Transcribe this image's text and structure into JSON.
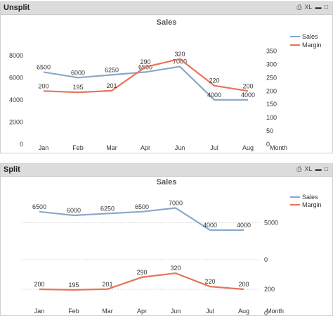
{
  "panels": [
    {
      "title": "Unsplit",
      "icons": [
        "print-icon",
        "xl-label",
        "minimize-icon",
        "maximize-icon"
      ],
      "xl_label": "XL"
    },
    {
      "title": "Split",
      "icons": [
        "print-icon",
        "xl-label",
        "minimize-icon",
        "maximize-icon"
      ],
      "xl_label": "XL"
    }
  ],
  "colors": {
    "sales": "#8aa9c9",
    "margin": "#e8735a"
  },
  "chart_data": [
    {
      "type": "line",
      "title": "Sales",
      "categories": [
        "Jan",
        "Feb",
        "Mar",
        "Apr",
        "Jun",
        "Jul",
        "Aug"
      ],
      "xlabel": "Month",
      "series": [
        {
          "name": "Sales",
          "axis": "left",
          "values": [
            6500,
            6000,
            6250,
            6500,
            7000,
            4000,
            4000
          ]
        },
        {
          "name": "Margin",
          "axis": "right",
          "values": [
            200,
            195,
            201,
            290,
            320,
            220,
            200
          ]
        }
      ],
      "y_left": {
        "ticks": [
          0,
          2000,
          4000,
          6000,
          8000
        ],
        "lim": [
          0,
          9000
        ]
      },
      "y_right": {
        "ticks": [
          0,
          50,
          100,
          150,
          200,
          250,
          300,
          350
        ],
        "lim": [
          0,
          375
        ]
      },
      "legend": "top-right",
      "value_labels": [
        [
          "6500",
          "6000",
          "6250",
          "6500",
          "7000",
          "4000",
          "4000"
        ],
        [
          "200",
          "195",
          "201",
          "290",
          "320",
          "220",
          "200"
        ]
      ]
    },
    {
      "type": "line",
      "title": "Sales",
      "categories": [
        "Jan",
        "Feb",
        "Mar",
        "Apr",
        "Jun",
        "Jul",
        "Aug"
      ],
      "xlabel": "Month",
      "split": true,
      "series": [
        {
          "name": "Sales",
          "values": [
            6500,
            6000,
            6250,
            6500,
            7000,
            4000,
            4000
          ]
        },
        {
          "name": "Margin",
          "values": [
            200,
            195,
            201,
            290,
            320,
            220,
            200
          ]
        }
      ],
      "upper_axis": {
        "ticks": [
          "5000",
          "0"
        ],
        "lim": [
          0,
          8000
        ]
      },
      "lower_axis": {
        "ticks": [
          "200",
          "0"
        ],
        "lim": [
          0,
          400
        ]
      },
      "grid": true,
      "legend": "top-right",
      "value_labels": [
        [
          "6500",
          "6000",
          "6250",
          "6500",
          "7000",
          "4000",
          "4000"
        ],
        [
          "200",
          "195",
          "201",
          "290",
          "320",
          "220",
          "200"
        ]
      ]
    }
  ]
}
